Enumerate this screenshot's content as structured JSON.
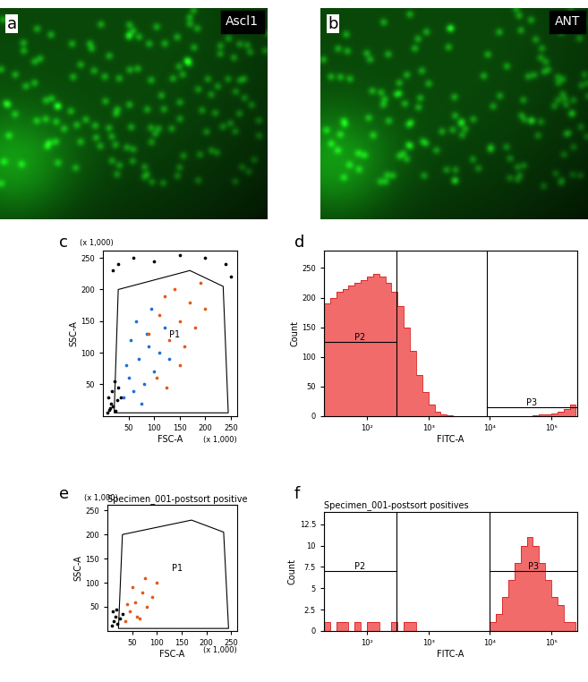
{
  "chart_data": [
    {
      "type": "image",
      "panel": "a",
      "label": "Ascl1"
    },
    {
      "type": "image",
      "panel": "b",
      "label": "ANT"
    },
    {
      "type": "scatter",
      "panel": "c",
      "x_label": "FSC-A",
      "y_label": "SSC-A",
      "x_multiplier": "(x 1,000)",
      "y_multiplier": "(x 1,000)",
      "xlim": [
        0,
        262
      ],
      "ylim": [
        0,
        262
      ],
      "xticks": [
        50,
        100,
        150,
        200,
        250
      ],
      "yticks": [
        50,
        100,
        150,
        200,
        250
      ],
      "gate": {
        "name": "P1",
        "vertices": [
          [
            22,
            5
          ],
          [
            30,
            200
          ],
          [
            170,
            230
          ],
          [
            235,
            205
          ],
          [
            245,
            5
          ]
        ]
      },
      "series": [
        {
          "color": "#000000",
          "values": [
            [
              8,
              5
            ],
            [
              12,
              10
            ],
            [
              15,
              20
            ],
            [
              10,
              30
            ],
            [
              20,
              15
            ],
            [
              25,
              8
            ],
            [
              18,
              40
            ],
            [
              28,
              25
            ],
            [
              30,
              45
            ],
            [
              22,
              55
            ],
            [
              14,
              12
            ],
            [
              35,
              30
            ]
          ]
        },
        {
          "color": "#000000",
          "values": [
            [
              30,
              240
            ],
            [
              60,
              250
            ],
            [
              100,
              245
            ],
            [
              150,
              255
            ],
            [
              200,
              250
            ],
            [
              240,
              240
            ],
            [
              250,
              220
            ],
            [
              20,
              230
            ]
          ]
        },
        {
          "color": "#1f6fd6",
          "values": [
            [
              40,
              30
            ],
            [
              50,
              60
            ],
            [
              60,
              40
            ],
            [
              70,
              90
            ],
            [
              80,
              50
            ],
            [
              90,
              110
            ],
            [
              100,
              70
            ],
            [
              55,
              120
            ],
            [
              65,
              150
            ],
            [
              85,
              130
            ],
            [
              110,
              100
            ],
            [
              45,
              80
            ],
            [
              75,
              20
            ],
            [
              120,
              140
            ],
            [
              95,
              170
            ],
            [
              130,
              90
            ]
          ]
        },
        {
          "color": "#e05a1a",
          "values": [
            [
              90,
              130
            ],
            [
              110,
              160
            ],
            [
              130,
              120
            ],
            [
              150,
              150
            ],
            [
              170,
              180
            ],
            [
              140,
              200
            ],
            [
              160,
              110
            ],
            [
              120,
              190
            ],
            [
              180,
              140
            ],
            [
              200,
              170
            ],
            [
              105,
              60
            ],
            [
              150,
              80
            ],
            [
              190,
              210
            ],
            [
              125,
              45
            ]
          ]
        }
      ]
    },
    {
      "type": "histogram",
      "panel": "d",
      "x_label": "FITC-A",
      "y_label": "Count",
      "log": "x",
      "color": "#f26b6b",
      "xlim": [
        20,
        260000
      ],
      "ylim": [
        0,
        280
      ],
      "xticks": [
        {
          "value": 100,
          "label": "10²"
        },
        {
          "value": 1000,
          "label": "10³"
        },
        {
          "value": 10000,
          "label": "10⁴"
        },
        {
          "value": 100000,
          "label": "10⁵"
        }
      ],
      "yticks": [
        0,
        50,
        100,
        150,
        200,
        250
      ],
      "bins": [
        20,
        25,
        32,
        40,
        50,
        63,
        79,
        100,
        126,
        158,
        200,
        251,
        316,
        398,
        501,
        631,
        794,
        1000,
        1259,
        1585,
        1995,
        2512,
        3162,
        3981,
        5012,
        6310,
        7943,
        10000,
        12589,
        15849,
        19953,
        25119,
        31623,
        39811,
        50119,
        63096,
        79433,
        100000,
        125893,
        158489,
        199526,
        251189
      ],
      "counts": [
        190,
        200,
        210,
        215,
        220,
        225,
        230,
        235,
        240,
        235,
        225,
        210,
        185,
        150,
        110,
        70,
        40,
        20,
        8,
        3,
        1,
        0,
        0,
        0,
        0,
        0,
        0,
        0,
        0,
        0,
        0,
        0,
        0,
        0,
        1,
        2,
        3,
        5,
        8,
        12,
        20
      ],
      "gates": [
        {
          "name": "P2",
          "x": [
            20,
            300
          ],
          "y": 125
        },
        {
          "name": "P3",
          "x": [
            9000,
            260000
          ],
          "y": 15
        }
      ]
    },
    {
      "type": "scatter",
      "panel": "e",
      "title": "Specimen_001-postsort positive",
      "x_label": "FSC-A",
      "y_label": "SSC-A",
      "x_multiplier": "(x 1,000)",
      "y_multiplier": "(x 1,000)",
      "xlim": [
        0,
        262
      ],
      "ylim": [
        0,
        262
      ],
      "xticks": [
        50,
        100,
        150,
        200,
        250
      ],
      "yticks": [
        50,
        100,
        150,
        200,
        250
      ],
      "gate": {
        "name": "P1",
        "vertices": [
          [
            22,
            5
          ],
          [
            30,
            200
          ],
          [
            170,
            230
          ],
          [
            235,
            205
          ],
          [
            245,
            5
          ]
        ]
      },
      "series": [
        {
          "color": "#000000",
          "values": [
            [
              8,
              10
            ],
            [
              12,
              20
            ],
            [
              15,
              30
            ],
            [
              20,
              15
            ],
            [
              10,
              40
            ],
            [
              25,
              25
            ],
            [
              18,
              45
            ],
            [
              30,
              35
            ]
          ]
        },
        {
          "color": "#e05a1a",
          "values": [
            [
              35,
              20
            ],
            [
              45,
              40
            ],
            [
              55,
              60
            ],
            [
              60,
              30
            ],
            [
              70,
              80
            ],
            [
              80,
              50
            ],
            [
              50,
              90
            ],
            [
              90,
              70
            ],
            [
              40,
              55
            ],
            [
              65,
              25
            ],
            [
              100,
              100
            ],
            [
              75,
              110
            ]
          ]
        }
      ]
    },
    {
      "type": "histogram",
      "panel": "f",
      "title": "Specimen_001-postsort positives",
      "x_label": "FITC-A",
      "y_label": "Count",
      "log": "x",
      "color": "#f26b6b",
      "xlim": [
        20,
        260000
      ],
      "ylim": [
        0,
        14
      ],
      "xticks": [
        {
          "value": 100,
          "label": "10²"
        },
        {
          "value": 1000,
          "label": "10³"
        },
        {
          "value": 10000,
          "label": "10⁴"
        },
        {
          "value": 100000,
          "label": "10⁵"
        }
      ],
      "yticks": [
        0,
        2.5,
        5,
        7.5,
        10,
        12.5
      ],
      "bins": [
        20,
        25,
        32,
        40,
        50,
        63,
        79,
        100,
        126,
        158,
        200,
        251,
        316,
        398,
        501,
        631,
        794,
        1000,
        1259,
        1585,
        1995,
        2512,
        3162,
        3981,
        5012,
        6310,
        7943,
        10000,
        12589,
        15849,
        19953,
        25119,
        31623,
        39811,
        50119,
        63096,
        79433,
        100000,
        125893,
        158489,
        199526,
        251189
      ],
      "counts": [
        1,
        0,
        1,
        1,
        0,
        1,
        0,
        1,
        1,
        0,
        0,
        1,
        0,
        1,
        1,
        0,
        0,
        0,
        0,
        0,
        0,
        0,
        0,
        0,
        0,
        0,
        0,
        1,
        2,
        4,
        6,
        8,
        10,
        11,
        10,
        8,
        6,
        4,
        3,
        1,
        1
      ],
      "gates": [
        {
          "name": "P2",
          "x": [
            20,
            300
          ],
          "y": 7
        },
        {
          "name": "P3",
          "x": [
            10000,
            260000
          ],
          "y": 7
        }
      ]
    }
  ]
}
